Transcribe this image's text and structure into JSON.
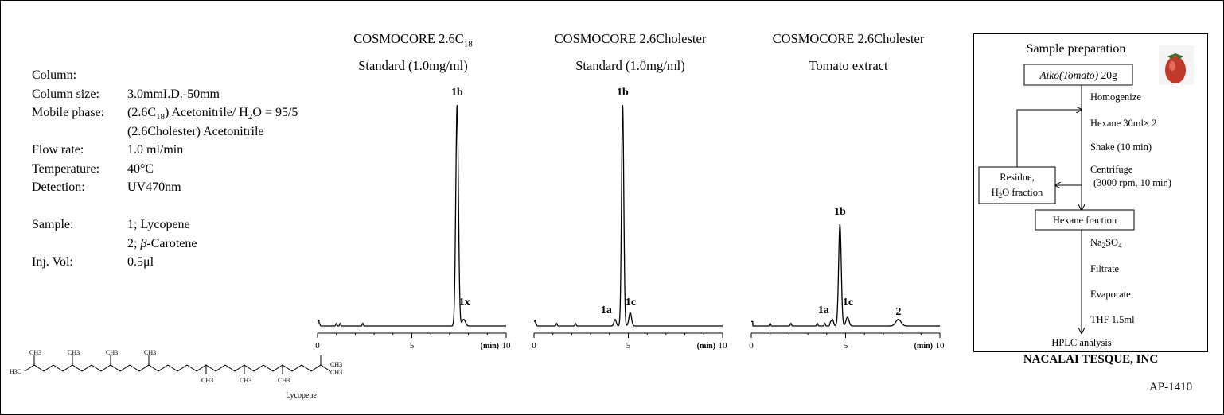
{
  "conditions": {
    "column_label": "Column:",
    "rows": [
      {
        "label": "Column size:",
        "value": "3.0mmI.D.-50mm"
      },
      {
        "label": "Mobile phase:",
        "value": "(2.6C18) Acetonitrile/ H2O = 95/5"
      },
      {
        "label": "",
        "value": "(2.6Cholester) Acetonitrile"
      },
      {
        "label": "Flow rate:",
        "value": "1.0 ml/min"
      },
      {
        "label": "Temperature:",
        "value": "40°C"
      },
      {
        "label": "Detection:",
        "value": "UV470nm"
      }
    ],
    "sample_rows": [
      {
        "label": "Sample:",
        "value": "1; Lycopene"
      },
      {
        "label": "",
        "value": "2; β-Carotene"
      },
      {
        "label": "Inj. Vol:",
        "value": "0.5μl"
      }
    ]
  },
  "structure": {
    "name": "Lycopene",
    "labels": [
      "CH3",
      "CH3",
      "CH3",
      "CH3",
      "H3C",
      "CH3",
      "CH3",
      "CH3",
      "CH3",
      "CH3"
    ]
  },
  "chart_data": [
    {
      "type": "line",
      "title": "COSMOCORE 2.6C18",
      "subtitle": "Standard (1.0mg/ml)",
      "xlabel": "(min)",
      "xlim": [
        0,
        10
      ],
      "x_ticks": [
        "0",
        "5",
        "10"
      ],
      "baseline_noise": [
        0.1,
        1.0,
        1.2,
        2.4
      ],
      "peaks": [
        {
          "label": "1b",
          "x": 7.4,
          "height": 1.0,
          "width": 0.07
        },
        {
          "label": "1x",
          "x": 7.75,
          "height": 0.03,
          "width": 0.09
        }
      ]
    },
    {
      "type": "line",
      "title": "COSMOCORE 2.6Cholester",
      "subtitle": "Standard (1.0mg/ml)",
      "xlabel": "(min)",
      "xlim": [
        0,
        10
      ],
      "x_ticks": [
        "0",
        "5",
        "10"
      ],
      "baseline_noise": [
        0.1,
        1.2,
        2.2
      ],
      "peaks": [
        {
          "label": "1a",
          "x": 4.3,
          "height": 0.03,
          "width": 0.06
        },
        {
          "label": "1b",
          "x": 4.7,
          "height": 1.0,
          "width": 0.06
        },
        {
          "label": "1c",
          "x": 5.1,
          "height": 0.06,
          "width": 0.07
        }
      ]
    },
    {
      "type": "line",
      "title": "COSMOCORE 2.6Cholester",
      "subtitle": "Tomato extract",
      "xlabel": "(min)",
      "xlim": [
        0,
        10
      ],
      "x_ticks": [
        "0",
        "5",
        "10"
      ],
      "baseline_noise": [
        1.0,
        2.1,
        3.5,
        3.9,
        4.2
      ],
      "peaks": [
        {
          "label": "1a",
          "x": 4.3,
          "height": 0.03,
          "width": 0.06
        },
        {
          "label": "1b",
          "x": 4.7,
          "height": 0.46,
          "width": 0.07
        },
        {
          "label": "1c",
          "x": 5.1,
          "height": 0.04,
          "width": 0.08
        },
        {
          "label": "2",
          "x": 7.8,
          "height": 0.03,
          "width": 0.14
        }
      ]
    }
  ],
  "prep": {
    "title": "Sample preparation",
    "start": "Aiko(Tomato) 20g",
    "steps": [
      "Homogenize",
      "Hexane 30ml× 2",
      "Shake (10 min)",
      "Centrifuge",
      "(3000 rpm, 10 min)"
    ],
    "residue": [
      "Residue,",
      "H2O  fraction"
    ],
    "hexane_fraction": "Hexane  fraction",
    "steps2": [
      "Na2SO4",
      "Filtrate",
      "Evaporate",
      "THF 1.5ml"
    ],
    "end": "HPLC analysis"
  },
  "company": "NACALAI TESQUE, INC",
  "code": "AP-1410"
}
